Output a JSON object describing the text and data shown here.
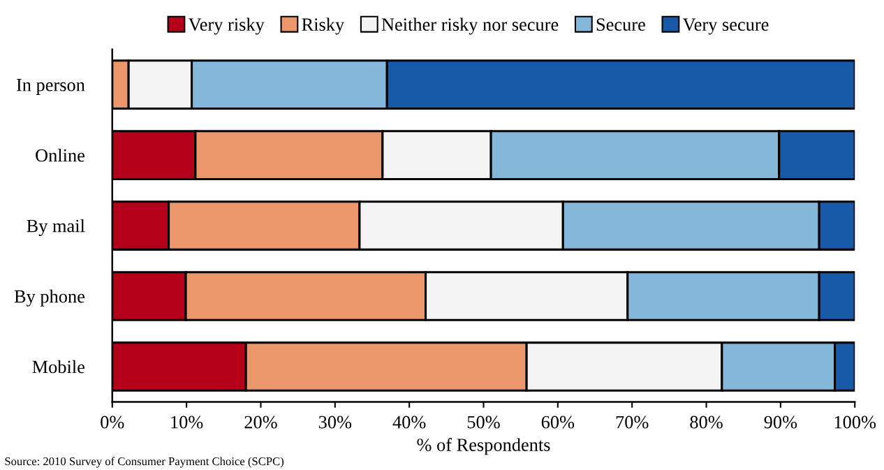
{
  "chart_data": {
    "type": "bar",
    "orientation": "horizontal",
    "stacked": true,
    "xlabel": "% of Respondents",
    "categories": [
      "In person",
      "Online",
      "By mail",
      "By phone",
      "Mobile"
    ],
    "series": [
      {
        "name": "Very risky",
        "color": "#b40018",
        "values": [
          0,
          11.2,
          7.6,
          9.9,
          18.0
        ]
      },
      {
        "name": "Risky",
        "color": "#eb966b",
        "values": [
          2.2,
          25.2,
          25.7,
          32.3,
          37.8
        ]
      },
      {
        "name": "Neither risky nor secure",
        "color": "#f4f4f4",
        "values": [
          8.5,
          14.6,
          27.4,
          27.2,
          26.3
        ]
      },
      {
        "name": "Secure",
        "color": "#85b7da",
        "values": [
          26.3,
          38.8,
          34.5,
          25.8,
          15.2
        ]
      },
      {
        "name": "Very secure",
        "color": "#185aa7",
        "values": [
          63.0,
          10.2,
          4.8,
          4.8,
          2.7
        ]
      }
    ],
    "xlim": [
      0,
      100
    ],
    "xticks": [
      {
        "value": 0,
        "label": "0%"
      },
      {
        "value": 10,
        "label": "10%"
      },
      {
        "value": 20,
        "label": "20%"
      },
      {
        "value": 30,
        "label": "30%"
      },
      {
        "value": 40,
        "label": "40%"
      },
      {
        "value": 50,
        "label": "50%"
      },
      {
        "value": 60,
        "label": "60%"
      },
      {
        "value": 70,
        "label": "70%"
      },
      {
        "value": 80,
        "label": "80%"
      },
      {
        "value": 90,
        "label": "90%"
      },
      {
        "value": 100,
        "label": "100%"
      }
    ],
    "legend": "top",
    "grid": false,
    "annotations": [
      "Source: 2010 Survey of Consumer Payment Choice (SCPC)"
    ]
  }
}
